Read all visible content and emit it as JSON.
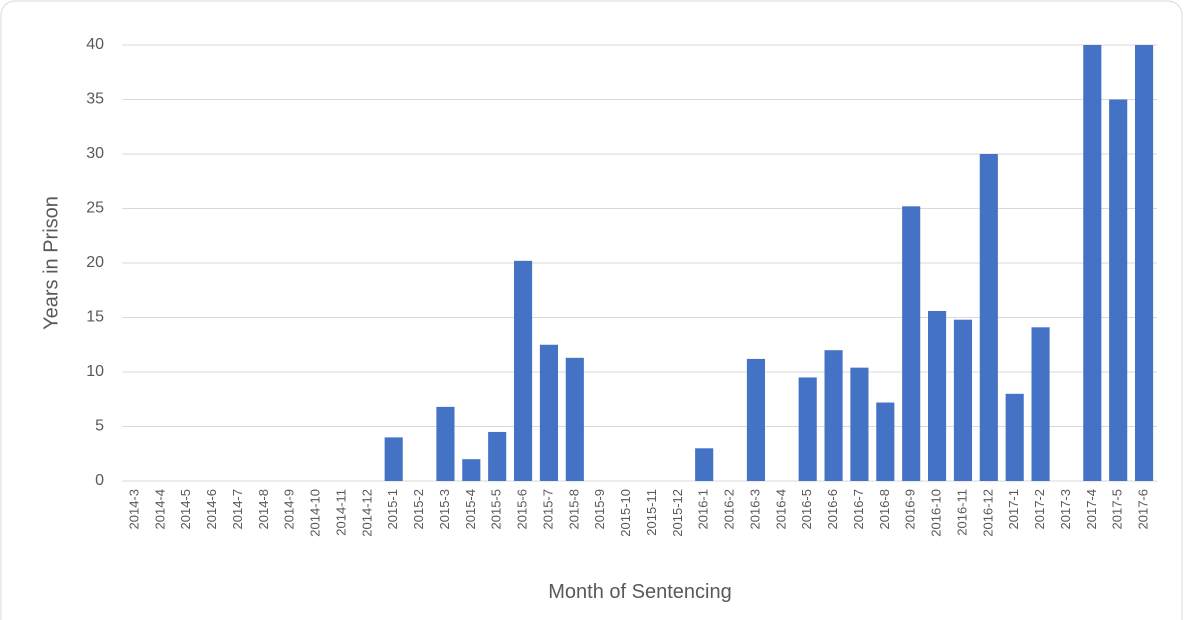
{
  "chart_data": {
    "type": "bar",
    "x_label": "Month of Sentencing",
    "y_label": "Years in Prison",
    "categories": [
      "2014-3",
      "2014-4",
      "2014-5",
      "2014-6",
      "2014-7",
      "2014-8",
      "2014-9",
      "2014-10",
      "2014-11",
      "2014-12",
      "2015-1",
      "2015-2",
      "2015-3",
      "2015-4",
      "2015-5",
      "2015-6",
      "2015-7",
      "2015-8",
      "2015-9",
      "2015-10",
      "2015-11",
      "2015-12",
      "2016-1",
      "2016-2",
      "2016-3",
      "2016-4",
      "2016-5",
      "2016-6",
      "2016-7",
      "2016-8",
      "2016-9",
      "2016-10",
      "2016-11",
      "2016-12",
      "2017-1",
      "2017-2",
      "2017-3",
      "2017-4",
      "2017-5",
      "2017-6"
    ],
    "values": [
      0,
      0,
      0,
      0,
      0,
      0,
      0,
      0,
      0,
      0,
      4,
      0,
      6.8,
      2,
      4.5,
      20.2,
      12.5,
      11.3,
      0,
      0,
      0,
      0,
      3,
      0,
      11.2,
      0,
      9.5,
      12,
      10.4,
      7.2,
      25.2,
      15.6,
      14.8,
      30,
      8,
      14.1,
      0,
      40,
      35,
      40
    ],
    "color": "#4472c4",
    "ylim": [
      0,
      40
    ],
    "yticks": [
      0,
      5,
      10,
      15,
      20,
      25,
      30,
      35,
      40
    ],
    "grid": true
  }
}
